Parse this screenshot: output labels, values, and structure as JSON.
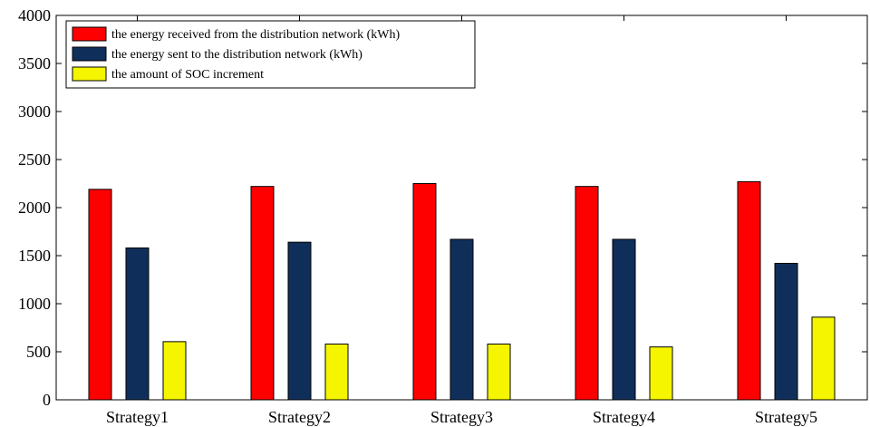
{
  "chart_data": {
    "type": "bar",
    "categories": [
      "Strategy1",
      "Strategy2",
      "Strategy3",
      "Strategy4",
      "Strategy5"
    ],
    "series": [
      {
        "name": "the energy received from the distribution network (kWh)",
        "color": "#ff0000",
        "values": [
          2190,
          2220,
          2250,
          2220,
          2270
        ]
      },
      {
        "name": "the energy sent to the distribution network (kWh)",
        "color": "#0f2f5a",
        "values": [
          1580,
          1640,
          1670,
          1670,
          1420
        ]
      },
      {
        "name": "the amount of SOC increment",
        "color": "#f5f500",
        "values": [
          605,
          580,
          580,
          550,
          860
        ]
      }
    ],
    "ylim": [
      0,
      4000
    ],
    "yticks": [
      0,
      500,
      1000,
      1500,
      2000,
      2500,
      3000,
      3500,
      4000
    ],
    "legend_position": "top-left",
    "grid": false
  }
}
